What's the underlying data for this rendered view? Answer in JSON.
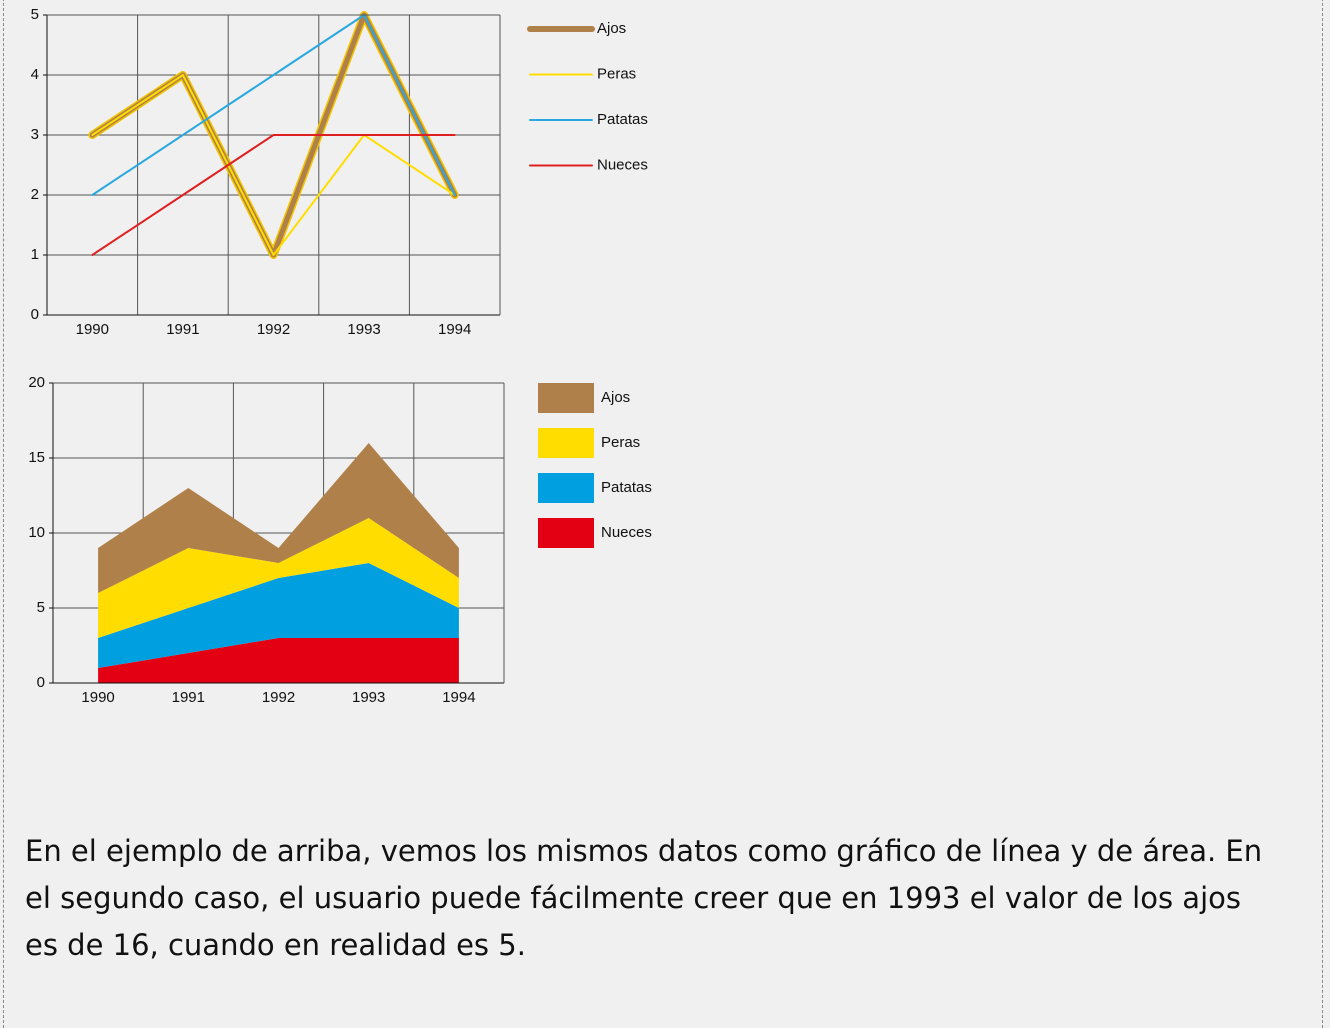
{
  "chart_data": [
    {
      "type": "line",
      "categories": [
        "1990",
        "1991",
        "1992",
        "1993",
        "1994"
      ],
      "series": [
        {
          "name": "Ajos",
          "color": "#b0804a",
          "values": [
            3,
            4,
            1,
            5,
            2
          ]
        },
        {
          "name": "Peras",
          "color": "#ffdd00",
          "values": [
            3,
            4,
            1,
            3,
            2
          ]
        },
        {
          "name": "Patatas",
          "color": "#29a8e0",
          "values": [
            2,
            3,
            4,
            5,
            2
          ]
        },
        {
          "name": "Nueces",
          "color": "#e02020",
          "values": [
            1,
            2,
            3,
            3,
            3
          ]
        }
      ],
      "ylim": [
        0,
        5
      ],
      "yticks": [
        0,
        1,
        2,
        3,
        4,
        5
      ],
      "grid": true
    },
    {
      "type": "area",
      "stacked": true,
      "categories": [
        "1990",
        "1991",
        "1992",
        "1993",
        "1994"
      ],
      "series": [
        {
          "name": "Ajos",
          "color": "#b0804a",
          "values": [
            3,
            4,
            1,
            5,
            2
          ]
        },
        {
          "name": "Peras",
          "color": "#ffdd00",
          "values": [
            3,
            4,
            1,
            3,
            2
          ]
        },
        {
          "name": "Patatas",
          "color": "#009fe0",
          "values": [
            2,
            3,
            4,
            5,
            2
          ]
        },
        {
          "name": "Nueces",
          "color": "#e30012",
          "values": [
            1,
            2,
            3,
            3,
            3
          ]
        }
      ],
      "ylim": [
        0,
        20
      ],
      "yticks": [
        0,
        5,
        10,
        15,
        20
      ],
      "grid": true
    }
  ],
  "paragraph": "En el ejemplo de arriba, vemos los mismos datos como gráfico de línea y de área. En el segundo caso, el usuario puede fácilmente creer que en 1993 el valor de los ajos es de 16, cuando en realidad es 5."
}
